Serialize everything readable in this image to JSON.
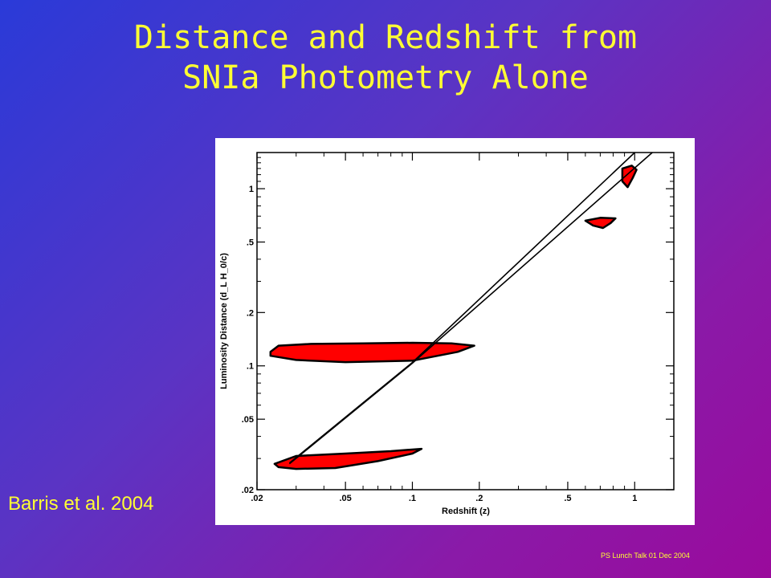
{
  "slide": {
    "title_line1": "Distance and Redshift from",
    "title_line2": "SNIa Photometry Alone",
    "citation": "Barris et al. 2004",
    "footer": "PS Lunch Talk 01 Dec 2004"
  },
  "colors": {
    "title": "#ffff33",
    "contour_fill": "#ff0000",
    "background_start": "#2a3ad8",
    "background_end": "#9a0a9c"
  },
  "chart_data": {
    "type": "scatter",
    "xlabel": "Redshift (z)",
    "ylabel": "Luminosity Distance (d_L H_0/c)",
    "x_scale": "log",
    "y_scale": "log",
    "xlim": [
      0.02,
      1.5
    ],
    "ylim": [
      0.02,
      1.6
    ],
    "x_ticks": [
      {
        "value": 0.02,
        "label": ".02"
      },
      {
        "value": 0.05,
        "label": ".05"
      },
      {
        "value": 0.1,
        "label": ".1"
      },
      {
        "value": 0.2,
        "label": ".2"
      },
      {
        "value": 0.5,
        "label": ".5"
      },
      {
        "value": 1,
        "label": "1"
      }
    ],
    "y_ticks": [
      {
        "value": 0.02,
        "label": ".02"
      },
      {
        "value": 0.05,
        "label": ".05"
      },
      {
        "value": 0.1,
        "label": ".1"
      },
      {
        "value": 0.2,
        "label": ".2"
      },
      {
        "value": 0.5,
        "label": ".5"
      },
      {
        "value": 1,
        "label": "1"
      }
    ],
    "lines": [
      {
        "points": [
          [
            0.028,
            0.028
          ],
          [
            0.1,
            0.1035
          ],
          [
            1.2,
            1.75
          ]
        ]
      },
      {
        "points": [
          [
            0.028,
            0.0283
          ],
          [
            0.1,
            0.1045
          ],
          [
            1.0,
            1.6
          ]
        ]
      }
    ],
    "contours": [
      {
        "points": [
          [
            0.023,
            0.12
          ],
          [
            0.025,
            0.13
          ],
          [
            0.035,
            0.133
          ],
          [
            0.06,
            0.134
          ],
          [
            0.1,
            0.135
          ],
          [
            0.15,
            0.134
          ],
          [
            0.19,
            0.13
          ],
          [
            0.16,
            0.12
          ],
          [
            0.1,
            0.107
          ],
          [
            0.05,
            0.105
          ],
          [
            0.03,
            0.108
          ],
          [
            0.023,
            0.114
          ]
        ]
      },
      {
        "points": [
          [
            0.024,
            0.028
          ],
          [
            0.03,
            0.031
          ],
          [
            0.05,
            0.032
          ],
          [
            0.08,
            0.033
          ],
          [
            0.11,
            0.034
          ],
          [
            0.1,
            0.032
          ],
          [
            0.07,
            0.029
          ],
          [
            0.045,
            0.0265
          ],
          [
            0.03,
            0.0262
          ],
          [
            0.025,
            0.0268
          ]
        ]
      },
      {
        "points": [
          [
            0.6,
            0.66
          ],
          [
            0.7,
            0.685
          ],
          [
            0.82,
            0.68
          ],
          [
            0.78,
            0.64
          ],
          [
            0.72,
            0.6
          ],
          [
            0.65,
            0.62
          ]
        ]
      },
      {
        "points": [
          [
            0.88,
            1.3
          ],
          [
            0.97,
            1.35
          ],
          [
            1.02,
            1.28
          ],
          [
            0.98,
            1.15
          ],
          [
            0.93,
            1.02
          ],
          [
            0.88,
            1.1
          ]
        ]
      }
    ]
  }
}
